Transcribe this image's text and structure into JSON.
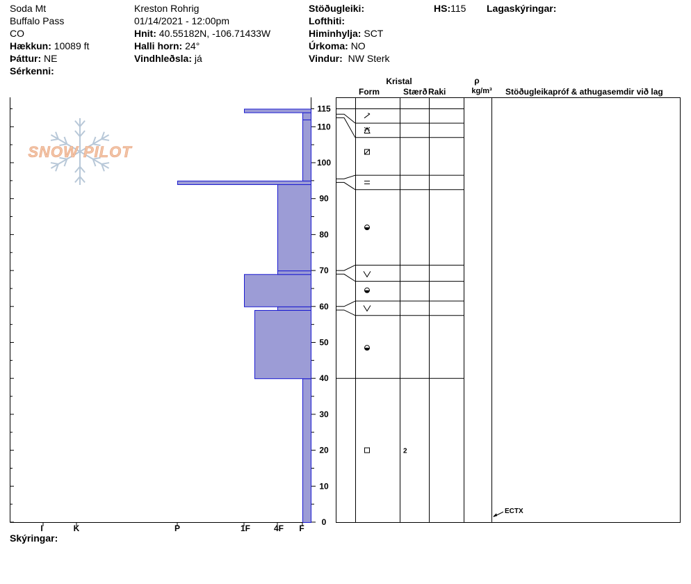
{
  "header": {
    "col1": [
      "Soda Mt",
      "Buffalo Pass",
      "CO"
    ],
    "elevation_label": "Hækkun:",
    "elevation_value": "10089 ft",
    "aspect_label": "Þáttur:",
    "aspect_value": "NE",
    "features_label": "Sérkenni:",
    "observer": "Kreston Rohrig",
    "datetime": "01/14/2021 - 12:00pm",
    "coords_label": "Hnit:",
    "coords_value": "40.55182N, -106.71433W",
    "slope_label": "Halli horn:",
    "slope_value": "24°",
    "windload_label": "Vindhleðsla:",
    "windload_value": "já",
    "stability_label": "Stöðugleiki:",
    "airtemp_label": "Lofthiti:",
    "sky_label": "Himinhylja:",
    "sky_value": "SCT",
    "precip_label": "Úrkoma:",
    "precip_value": "NO",
    "wind_label": "Vindur:",
    "wind_value": "NW Sterk",
    "hs_label": "HS:",
    "hs_value": "115",
    "layer_notes_label": "Lagaskýringar:"
  },
  "logo_text": "SNOW PILOT",
  "columns": {
    "crystal": "Kristal",
    "form": "Form",
    "size": "Stærð",
    "moisture": "Raki",
    "rho": "ρ",
    "density_unit": "kg/m³",
    "tests": "Stöðugleikapróf & athugasemdir við lag"
  },
  "footer": {
    "notes_label": "Skýringar:"
  },
  "chart_data": {
    "type": "bar",
    "orientation": "horizontal",
    "y_axis": {
      "label": "",
      "range": [
        0,
        118
      ],
      "ticks": [
        0,
        10,
        20,
        30,
        40,
        50,
        60,
        70,
        80,
        90,
        100,
        110,
        115
      ]
    },
    "x_axis": {
      "categories": [
        "I",
        "K",
        "P",
        "1F",
        "4F",
        "F"
      ],
      "direction": "right-to-left"
    },
    "hardness_layers": [
      {
        "bottom": 0,
        "top": 40,
        "hardness": "F"
      },
      {
        "bottom": 40,
        "top": 59,
        "hardness": "1F-"
      },
      {
        "bottom": 59,
        "top": 60,
        "hardness": "4F"
      },
      {
        "bottom": 60,
        "top": 69,
        "hardness": "1F"
      },
      {
        "bottom": 69,
        "top": 70,
        "hardness": "4F"
      },
      {
        "bottom": 70,
        "top": 94,
        "hardness": "4F"
      },
      {
        "bottom": 94,
        "top": 95,
        "hardness": "P-"
      },
      {
        "bottom": 95,
        "top": 112,
        "hardness": "F"
      },
      {
        "bottom": 112,
        "top": 114,
        "hardness": "F"
      },
      {
        "bottom": 114,
        "top": 115,
        "hardness": "1F"
      }
    ],
    "stratigraphy_boundaries": [
      40,
      57.5,
      61.5,
      67,
      71.5,
      92.5,
      96.5,
      107,
      111,
      115
    ],
    "layer_markers": [
      {
        "depth": 113,
        "form": "decomposing"
      },
      {
        "depth": 109,
        "form": "surface-hoar"
      },
      {
        "depth": 103,
        "form": "mixed-forms"
      },
      {
        "depth": 94.5,
        "form": "ice-crust"
      },
      {
        "depth": 82,
        "form": "melt-freeze"
      },
      {
        "depth": 69,
        "form": "depth-hoar"
      },
      {
        "depth": 64.5,
        "form": "melt-freeze"
      },
      {
        "depth": 59.5,
        "form": "depth-hoar"
      },
      {
        "depth": 48.5,
        "form": "melt-freeze"
      },
      {
        "depth": 20,
        "form": "faceted",
        "size": "2"
      }
    ],
    "tests": [
      {
        "depth": 1.5,
        "label": "ECTX"
      }
    ]
  },
  "colors": {
    "hardness_fill": "#9c9cd6",
    "hardness_stroke": "#1a1ad0",
    "logo_orange": "#f2c4a6",
    "logo_blue": "#b8c8d8"
  }
}
